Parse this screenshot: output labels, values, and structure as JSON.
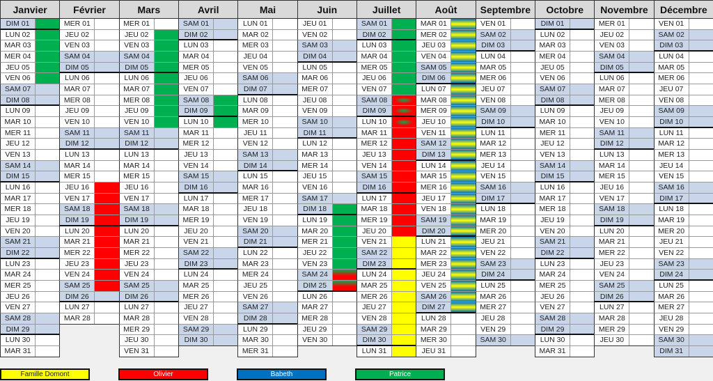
{
  "colors": {
    "weekend": "#c9d6ea",
    "domont": "#ffff00",
    "olivier": "#ff0000",
    "babeth": "#0070c0",
    "patrice": "#00b050"
  },
  "legend": [
    {
      "key": "domont",
      "label": "Famille Domont",
      "text_color": "#222222"
    },
    {
      "key": "olivier",
      "label": "Olivier",
      "text_color": "#ffffff"
    },
    {
      "key": "babeth",
      "label": "Babeth",
      "text_color": "#ffffff"
    },
    {
      "key": "patrice",
      "label": "Patrice",
      "text_color": "#ffffff"
    }
  ],
  "months": [
    {
      "name": "Janvier",
      "days": [
        "DIM 01",
        "LUN 02",
        "MAR 03",
        "MER 04",
        "JEU 05",
        "VEN 06",
        "SAM 07",
        "DIM 08",
        "LUN 09",
        "MAR 10",
        "MER 11",
        "JEU 12",
        "VEN 13",
        "SAM 14",
        "DIM 15",
        "LUN 16",
        "MAR 17",
        "MER 18",
        "JEU 19",
        "VEN 20",
        "SAM 21",
        "DIM 22",
        "LUN 23",
        "MAR 24",
        "MER 25",
        "JEU 26",
        "VEN 27",
        "SAM 28",
        "DIM 29",
        "LUN 30",
        "MAR 31"
      ],
      "fills": [
        {
          "from": 1,
          "to": 6,
          "who": "patrice"
        }
      ]
    },
    {
      "name": "Février",
      "days": [
        "MER 01",
        "JEU 02",
        "VEN 03",
        "SAM 04",
        "DIM 05",
        "LUN 06",
        "MAR 07",
        "MER 08",
        "JEU 09",
        "VEN 10",
        "SAM 11",
        "DIM 12",
        "LUN 13",
        "MAR 14",
        "MER 15",
        "JEU 16",
        "VEN 17",
        "SAM 18",
        "DIM 19",
        "LUN 20",
        "MAR 21",
        "MER 22",
        "JEU 23",
        "VEN 24",
        "SAM 25",
        "DIM 26",
        "LUN 27",
        "MAR 28"
      ],
      "fills": [
        {
          "from": 16,
          "to": 25,
          "who": "olivier"
        }
      ]
    },
    {
      "name": "Mars",
      "days": [
        "MER 01",
        "JEU 02",
        "VEN 03",
        "SAM 04",
        "DIM 05",
        "LUN 06",
        "MAR 07",
        "MER 08",
        "JEU 09",
        "VEN 10",
        "SAM 11",
        "DIM 12",
        "LUN 13",
        "MAR 14",
        "MER 15",
        "JEU 16",
        "VEN 17",
        "SAM 18",
        "DIM 19",
        "LUN 20",
        "MAR 21",
        "MER 22",
        "JEU 23",
        "VEN 24",
        "SAM 25",
        "DIM 26",
        "LUN 27",
        "MAR 28",
        "MER 29",
        "JEU 30",
        "VEN 31"
      ],
      "fills": [
        {
          "from": 2,
          "to": 10,
          "who": "patrice"
        }
      ]
    },
    {
      "name": "Avril",
      "days": [
        "SAM 01",
        "DIM 02",
        "LUN 03",
        "MAR 04",
        "MER 05",
        "JEU 06",
        "VEN 07",
        "SAM 08",
        "DIM 09",
        "LUN 10",
        "MAR 11",
        "MER 12",
        "JEU 13",
        "VEN 14",
        "SAM 15",
        "DIM 16",
        "LUN 17",
        "MAR 18",
        "MER 19",
        "JEU 20",
        "VEN 21",
        "SAM 22",
        "DIM 23",
        "LUN 24",
        "MAR 25",
        "MER 26",
        "JEU 27",
        "VEN 28",
        "SAM 29",
        "DIM 30"
      ],
      "fills": [
        {
          "from": 8,
          "to": 10,
          "who": "patrice"
        }
      ]
    },
    {
      "name": "Mai",
      "days": [
        "LUN 01",
        "MAR 02",
        "MER 03",
        "JEU 04",
        "VEN 05",
        "SAM 06",
        "DIM 07",
        "LUN 08",
        "MAR 09",
        "MER 10",
        "JEU 11",
        "VEN 12",
        "SAM 13",
        "DIM 14",
        "LUN 15",
        "MAR 16",
        "MER 17",
        "JEU 18",
        "VEN 19",
        "SAM 20",
        "DIM 21",
        "LUN 22",
        "MAR 23",
        "MER 24",
        "JEU 25",
        "VEN 26",
        "SAM 27",
        "DIM 28",
        "LUN 29",
        "MAR 30",
        "MER 31"
      ],
      "fills": []
    },
    {
      "name": "Juin",
      "days": [
        "JEU 01",
        "VEN 02",
        "SAM 03",
        "DIM 04",
        "LUN 05",
        "MAR 06",
        "MER 07",
        "JEU 08",
        "VEN 09",
        "SAM 10",
        "DIM 11",
        "LUN 12",
        "MAR 13",
        "MER 14",
        "JEU 15",
        "VEN 16",
        "SAM 17",
        "DIM 18",
        "LUN 19",
        "MAR 20",
        "MER 21",
        "JEU 22",
        "VEN 23",
        "SAM 24",
        "DIM 25",
        "LUN 26",
        "MAR 27",
        "MER 28",
        "JEU 29",
        "VEN 30"
      ],
      "fills": [
        {
          "from": 18,
          "to": 23,
          "who": "patrice"
        },
        {
          "from": 24,
          "to": 25,
          "who": "patrice+olivier"
        }
      ]
    },
    {
      "name": "Juillet",
      "days": [
        "SAM 01",
        "DIM 02",
        "LUN 03",
        "MAR 04",
        "MER 05",
        "JEU 06",
        "VEN 07",
        "SAM 08",
        "DIM 09",
        "LUN 10",
        "MAR 11",
        "MER 12",
        "JEU 13",
        "VEN 14",
        "SAM 15",
        "DIM 16",
        "LUN 17",
        "MAR 18",
        "MER 19",
        "JEU 20",
        "VEN 21",
        "SAM 22",
        "DIM 23",
        "LUN 24",
        "MAR 25",
        "MER 26",
        "JEU 27",
        "VEN 28",
        "SAM 29",
        "DIM 30",
        "LUN 31"
      ],
      "fills": [
        {
          "from": 1,
          "to": 7,
          "who": "patrice"
        },
        {
          "from": 8,
          "to": 10,
          "who": "olivier+patrice"
        },
        {
          "from": 11,
          "to": 20,
          "who": "olivier"
        },
        {
          "from": 21,
          "to": 31,
          "who": "domont"
        }
      ]
    },
    {
      "name": "Août",
      "days": [
        "MAR 01",
        "MER 02",
        "JEU 03",
        "VEN 04",
        "SAM 05",
        "DIM 06",
        "LUN 07",
        "MAR 08",
        "MER 09",
        "JEU 10",
        "VEN 11",
        "SAM 12",
        "DIM 13",
        "LUN 14",
        "MAR 15",
        "MER 16",
        "JEU 17",
        "VEN 18",
        "SAM 19",
        "DIM 20",
        "LUN 21",
        "MAR 22",
        "MER 23",
        "JEU 24",
        "VEN 25",
        "SAM 26",
        "DIM 27",
        "LUN 28",
        "MAR 29",
        "MER 30",
        "JEU 31"
      ],
      "fills": [
        {
          "from": 1,
          "to": 27,
          "who": "domont+babeth"
        }
      ]
    },
    {
      "name": "Septembre",
      "days": [
        "VEN 01",
        "SAM 02",
        "DIM 03",
        "LUN 04",
        "MAR 05",
        "MER 06",
        "JEU 07",
        "VEN 08",
        "SAM 09",
        "DIM 10",
        "LUN 11",
        "MAR 12",
        "MER 13",
        "JEU 14",
        "VEN 15",
        "SAM 16",
        "DIM 17",
        "LUN 18",
        "MAR 19",
        "MER 20",
        "JEU 21",
        "VEN 22",
        "SAM 23",
        "DIM 24",
        "LUN 25",
        "MAR 26",
        "MER 27",
        "JEU 28",
        "VEN 29",
        "SAM 30"
      ],
      "fills": []
    },
    {
      "name": "Octobre",
      "days": [
        "DIM 01",
        "LUN 02",
        "MAR 03",
        "MER 04",
        "JEU 05",
        "VEN 06",
        "SAM 07",
        "DIM 08",
        "LUN 09",
        "MAR 10",
        "MER 11",
        "JEU 12",
        "VEN 13",
        "SAM 14",
        "DIM 15",
        "LUN 16",
        "MAR 17",
        "MER 18",
        "JEU 19",
        "VEN 20",
        "SAM 21",
        "DIM 22",
        "LUN 23",
        "MAR 24",
        "MER 25",
        "JEU 26",
        "VEN 27",
        "SAM 28",
        "DIM 29",
        "LUN 30",
        "MAR 31"
      ],
      "fills": []
    },
    {
      "name": "Novembre",
      "days": [
        "MER 01",
        "JEU 02",
        "VEN 03",
        "SAM 04",
        "DIM 05",
        "LUN 06",
        "MAR 07",
        "MER 08",
        "JEU 09",
        "VEN 10",
        "SAM 11",
        "DIM 12",
        "LUN 13",
        "MAR 14",
        "MER 15",
        "JEU 16",
        "VEN 17",
        "SAM 18",
        "DIM 19",
        "LUN 20",
        "MAR 21",
        "MER 22",
        "JEU 23",
        "VEN 24",
        "SAM 25",
        "DIM 26",
        "LUN 27",
        "MAR 28",
        "MER 29",
        "JEU 30"
      ],
      "fills": []
    },
    {
      "name": "Décembre",
      "days": [
        "VEN 01",
        "SAM 02",
        "DIM 03",
        "LUN 04",
        "MAR 05",
        "MER 06",
        "JEU 07",
        "VEN 08",
        "SAM 09",
        "DIM 10",
        "LUN 11",
        "MAR 12",
        "MER 13",
        "JEU 14",
        "VEN 15",
        "SAM 16",
        "DIM 17",
        "LUN 18",
        "MAR 19",
        "MER 20",
        "JEU 21",
        "VEN 22",
        "SAM 23",
        "DIM 24",
        "LUN 25",
        "MAR 26",
        "MER 27",
        "JEU 28",
        "VEN 29",
        "SAM 30",
        "DIM 31"
      ],
      "fills": []
    }
  ]
}
